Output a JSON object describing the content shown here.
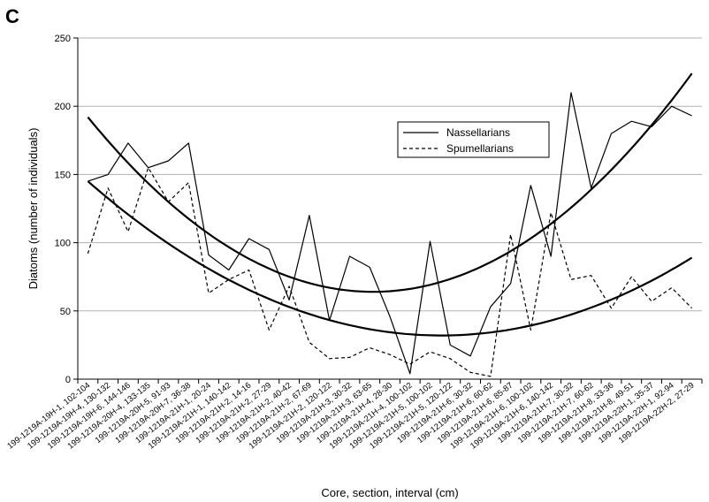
{
  "panel_label": "C",
  "chart_data": {
    "type": "line",
    "xlabel": "Core, section, interval (cm)",
    "ylabel": "Diatoms (number of individuals)",
    "ylim": [
      0,
      250
    ],
    "yticks": [
      0,
      50,
      100,
      150,
      200,
      250
    ],
    "grid": "horizontal",
    "legend_position": "upper-right",
    "categories": [
      "199-1219A-19H-1, 102-104",
      "199-1219A-19H-4, 130-132",
      "199-1219A-19H-6, 144-146",
      "199-1219A-20H-4, 133-135",
      "199-1219A-20H-5, 91-93",
      "199-1219A-20H-7, 36-38",
      "199-1219A-21H-1, 20-24",
      "199-1219A-21H-1, 140-142",
      "199-1219A-21H-2, 14-16",
      "199-1219A-21H-2, 27-29",
      "199-1219A-21H-2, 40-42",
      "199-1219A-21H-2, 67-69",
      "199-1219A-21H-2, 120-122",
      "199-1219A-21H-3, 30-32",
      "199-1219A-21H-3, 63-65",
      "199-1219A-21H-4, 28-30",
      "199-1219A-21H-4, 100-102",
      "199-1219A-21H-5, 100-102",
      "199-1219A-21H-5, 120-122",
      "199-1219A-21H-6, 30-32",
      "199-1219A-21H-6, 60-62",
      "199-1219A-21H-6, 85-87",
      "199-1219A-21H-6, 100-102",
      "199-1219A-21H-6, 140-142",
      "199-1219A-21H-7, 30-32",
      "199-1219A-21H-7, 60-62",
      "199-1219A-21H-8, 33-36",
      "199-1219A-21H-8, 49-51",
      "199-1219A-22H-1, 35-37",
      "199-1219A-22H-1, 92-94",
      "199-1219A-22H-2, 27-29"
    ],
    "series": [
      {
        "name": "Nassellarians",
        "style": "solid",
        "values": [
          145,
          150,
          173,
          155,
          160,
          173,
          91,
          80,
          103,
          95,
          58,
          120,
          43,
          90,
          82,
          46,
          4,
          101,
          25,
          17,
          53,
          70,
          142,
          90,
          210,
          140,
          180,
          189,
          185,
          200,
          193
        ]
      },
      {
        "name": "Spumellarians",
        "style": "dashed",
        "values": [
          92,
          140,
          108,
          155,
          130,
          144,
          63,
          73,
          80,
          36,
          68,
          27,
          15,
          16,
          23,
          18,
          11,
          20,
          15,
          5,
          2,
          106,
          36,
          122,
          73,
          76,
          52,
          75,
          57,
          67,
          52
        ]
      }
    ],
    "trendlines": [
      {
        "type": "polynomial",
        "series": "Nassellarians",
        "y_start": 192,
        "y_min": 64,
        "y_end": 224
      },
      {
        "type": "polynomial",
        "series": "Spumellarians",
        "y_start": 145,
        "y_min": 32,
        "y_end": 89
      }
    ]
  }
}
